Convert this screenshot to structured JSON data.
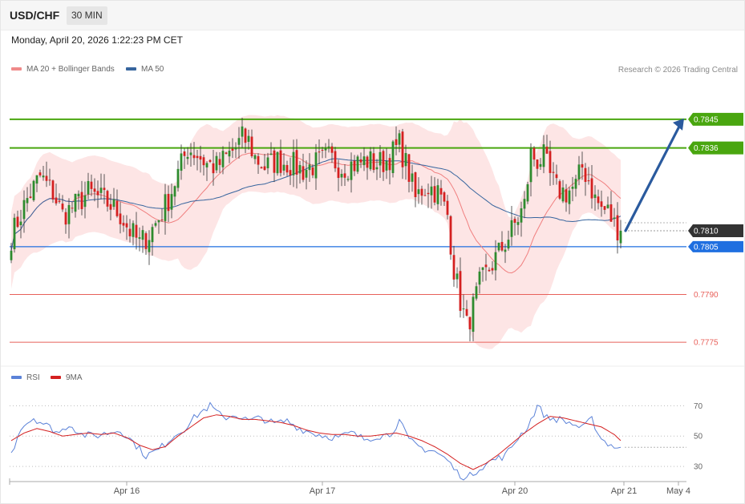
{
  "header": {
    "symbol": "USD/CHF",
    "timeframe": "30 MIN",
    "datetime": "Monday, April 20, 2026 1:22:23 PM CET"
  },
  "legend": {
    "ma20": "MA 20 + Bollinger Bands",
    "ma50": "MA 50",
    "rsi": "RSI",
    "rsi_ma": "9MA"
  },
  "credit": "Research © 2026 Trading Central",
  "colors": {
    "ma20": "#f07f7f",
    "ma50": "#37659e",
    "band_fill": "#fde0e0",
    "up_candle": "#2e8b2e",
    "down_candle": "#d42020",
    "resistance": "#49a60f",
    "support_blue": "#1f6fe0",
    "support_red": "#e8605a",
    "current": "#333333",
    "rsi": "#5b82d8",
    "rsi_ma": "#d42020",
    "arrow": "#2a5a9e"
  },
  "chart_data": [
    {
      "type": "candlestick",
      "title": "",
      "x_labels": [
        "Apr 16",
        "Apr 17",
        "Apr 20",
        "Apr 21",
        "May 4"
      ],
      "ylim": [
        0.777,
        0.7852
      ],
      "levels": [
        {
          "value": 0.7845,
          "label": "0.7845",
          "kind": "resistance"
        },
        {
          "value": 0.7836,
          "label": "0.7836",
          "kind": "resistance"
        },
        {
          "value": 0.781,
          "label": "0.7810",
          "kind": "current"
        },
        {
          "value": 0.7805,
          "label": "0.7805",
          "kind": "support_primary"
        },
        {
          "value": 0.779,
          "label": "0.7790",
          "kind": "support"
        },
        {
          "value": 0.7775,
          "label": "0.7775",
          "kind": "support"
        }
      ],
      "forecast_arrow": {
        "from": 0.781,
        "to": 0.7845,
        "direction": "up"
      },
      "overlays": [
        "MA 20 + Bollinger Bands",
        "MA 50"
      ],
      "anchors": [
        [
          0,
          0.7808
        ],
        [
          2,
          0.7813
        ],
        [
          5,
          0.782
        ],
        [
          9,
          0.7827
        ],
        [
          13,
          0.7822
        ],
        [
          16,
          0.7815
        ],
        [
          20,
          0.7818
        ],
        [
          24,
          0.7822
        ],
        [
          28,
          0.782
        ],
        [
          31,
          0.7818
        ],
        [
          34,
          0.7815
        ],
        [
          37,
          0.781
        ],
        [
          40,
          0.7806
        ],
        [
          43,
          0.7809
        ],
        [
          46,
          0.7814
        ],
        [
          49,
          0.782
        ],
        [
          52,
          0.7828
        ],
        [
          55,
          0.7836
        ],
        [
          58,
          0.7834
        ],
        [
          61,
          0.7831
        ],
        [
          64,
          0.783
        ],
        [
          67,
          0.7833
        ],
        [
          70,
          0.7836
        ],
        [
          72,
          0.7839
        ],
        [
          74,
          0.7838
        ],
        [
          76,
          0.7833
        ],
        [
          79,
          0.783
        ],
        [
          83,
          0.7832
        ],
        [
          87,
          0.7831
        ],
        [
          91,
          0.7829
        ],
        [
          95,
          0.7831
        ],
        [
          99,
          0.7833
        ],
        [
          103,
          0.783
        ],
        [
          107,
          0.7831
        ],
        [
          111,
          0.7832
        ],
        [
          114,
          0.7831
        ],
        [
          117,
          0.7832
        ],
        [
          121,
          0.7837
        ],
        [
          124,
          0.7828
        ],
        [
          126,
          0.782
        ],
        [
          128,
          0.7823
        ],
        [
          130,
          0.7824
        ],
        [
          133,
          0.7822
        ],
        [
          136,
          0.7815
        ],
        [
          138,
          0.7798
        ],
        [
          140,
          0.7788
        ],
        [
          142,
          0.778
        ],
        [
          144,
          0.7786
        ],
        [
          146,
          0.7793
        ],
        [
          149,
          0.7798
        ],
        [
          152,
          0.7803
        ],
        [
          155,
          0.7808
        ],
        [
          158,
          0.7814
        ],
        [
          160,
          0.7818
        ],
        [
          162,
          0.7834
        ],
        [
          164,
          0.7832
        ],
        [
          166,
          0.7833
        ],
        [
          168,
          0.7827
        ],
        [
          170,
          0.7823
        ],
        [
          173,
          0.7822
        ],
        [
          176,
          0.7824
        ],
        [
          178,
          0.783
        ],
        [
          180,
          0.7826
        ],
        [
          182,
          0.782
        ],
        [
          184,
          0.7817
        ],
        [
          186,
          0.7816
        ],
        [
          188,
          0.7812
        ],
        [
          190,
          0.781
        ]
      ]
    },
    {
      "type": "line",
      "title": "",
      "series": [
        {
          "name": "RSI"
        },
        {
          "name": "9MA"
        }
      ],
      "ylim": [
        20,
        76
      ],
      "ticks": [
        70,
        50,
        30
      ],
      "rsi_anchors": [
        [
          0,
          38
        ],
        [
          3,
          56
        ],
        [
          7,
          62
        ],
        [
          11,
          57
        ],
        [
          15,
          52
        ],
        [
          18,
          58
        ],
        [
          22,
          51
        ],
        [
          26,
          50
        ],
        [
          30,
          52
        ],
        [
          34,
          54
        ],
        [
          38,
          46
        ],
        [
          42,
          37
        ],
        [
          46,
          41
        ],
        [
          50,
          49
        ],
        [
          54,
          55
        ],
        [
          58,
          64
        ],
        [
          62,
          70
        ],
        [
          66,
          62
        ],
        [
          70,
          64
        ],
        [
          74,
          60
        ],
        [
          78,
          62
        ],
        [
          82,
          58
        ],
        [
          86,
          60
        ],
        [
          90,
          55
        ],
        [
          94,
          52
        ],
        [
          98,
          50
        ],
        [
          102,
          49
        ],
        [
          106,
          52
        ],
        [
          110,
          48
        ],
        [
          114,
          50
        ],
        [
          118,
          51
        ],
        [
          121,
          60
        ],
        [
          124,
          47
        ],
        [
          128,
          42
        ],
        [
          132,
          40
        ],
        [
          136,
          34
        ],
        [
          139,
          26
        ],
        [
          142,
          22
        ],
        [
          146,
          29
        ],
        [
          150,
          34
        ],
        [
          154,
          37
        ],
        [
          158,
          49
        ],
        [
          161,
          56
        ],
        [
          164,
          70
        ],
        [
          167,
          62
        ],
        [
          171,
          61
        ],
        [
          175,
          58
        ],
        [
          178,
          55
        ],
        [
          181,
          61
        ],
        [
          184,
          48
        ],
        [
          187,
          44
        ],
        [
          190,
          42
        ]
      ],
      "ma_anchors": [
        [
          0,
          47
        ],
        [
          4,
          52
        ],
        [
          8,
          55
        ],
        [
          12,
          53
        ],
        [
          16,
          50
        ],
        [
          20,
          51
        ],
        [
          24,
          52
        ],
        [
          28,
          51
        ],
        [
          32,
          52
        ],
        [
          36,
          49
        ],
        [
          40,
          44
        ],
        [
          44,
          41
        ],
        [
          48,
          43
        ],
        [
          52,
          50
        ],
        [
          56,
          56
        ],
        [
          60,
          62
        ],
        [
          64,
          64
        ],
        [
          68,
          63
        ],
        [
          72,
          61
        ],
        [
          76,
          61
        ],
        [
          80,
          60
        ],
        [
          84,
          59
        ],
        [
          88,
          57
        ],
        [
          92,
          54
        ],
        [
          96,
          52
        ],
        [
          100,
          51
        ],
        [
          104,
          51
        ],
        [
          108,
          50
        ],
        [
          112,
          50
        ],
        [
          116,
          51
        ],
        [
          120,
          52
        ],
        [
          124,
          50
        ],
        [
          128,
          47
        ],
        [
          132,
          43
        ],
        [
          136,
          38
        ],
        [
          140,
          32
        ],
        [
          144,
          28
        ],
        [
          148,
          32
        ],
        [
          152,
          38
        ],
        [
          156,
          45
        ],
        [
          160,
          52
        ],
        [
          164,
          58
        ],
        [
          168,
          63
        ],
        [
          172,
          62
        ],
        [
          176,
          60
        ],
        [
          180,
          58
        ],
        [
          184,
          56
        ],
        [
          188,
          51
        ],
        [
          190,
          47
        ]
      ]
    }
  ]
}
